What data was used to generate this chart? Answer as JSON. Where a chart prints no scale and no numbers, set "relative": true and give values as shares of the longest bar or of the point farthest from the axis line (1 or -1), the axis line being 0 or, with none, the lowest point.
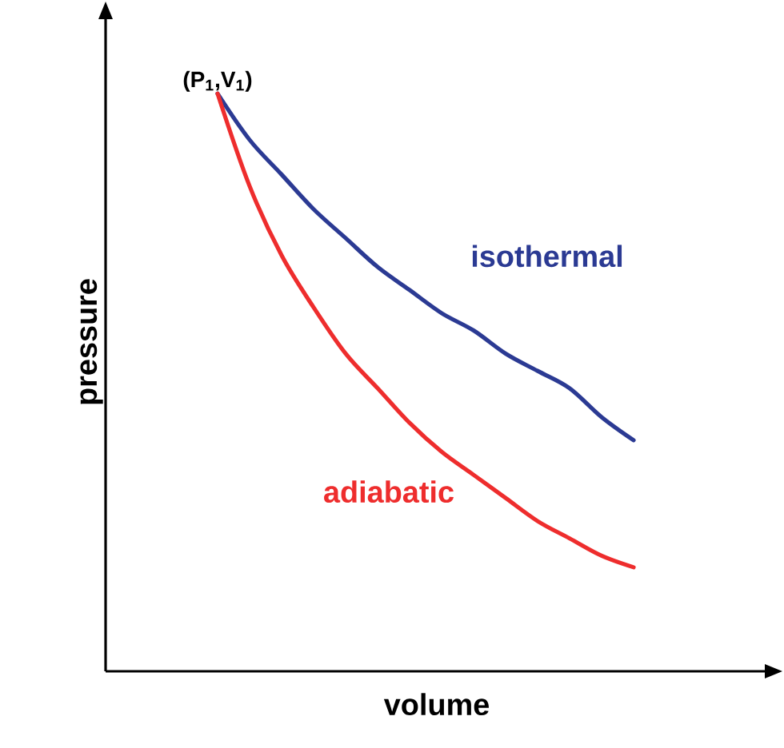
{
  "chart_data": {
    "type": "line",
    "relative": true,
    "xlabel": "volume",
    "ylabel": "pressure",
    "categories": [
      null,
      null,
      null,
      null,
      null,
      null,
      null,
      null,
      null,
      null,
      null,
      null,
      null,
      null
    ],
    "series": [
      {
        "name": "isothermal",
        "color": "#2b3a93",
        "values": [
          1,
          0.92,
          0.86,
          0.8,
          0.75,
          0.7,
          0.66,
          0.62,
          0.59,
          0.55,
          0.52,
          0.49,
          0.44,
          0.4
        ]
      },
      {
        "name": "adiabatic",
        "color": "#ee2d2d",
        "values": [
          1,
          0.84,
          0.72,
          0.63,
          0.55,
          0.49,
          0.43,
          0.38,
          0.34,
          0.3,
          0.26,
          0.23,
          0.2,
          0.18
        ]
      }
    ],
    "annotations": [
      "(P$_{1}$,V$_{1}$)"
    ]
  }
}
